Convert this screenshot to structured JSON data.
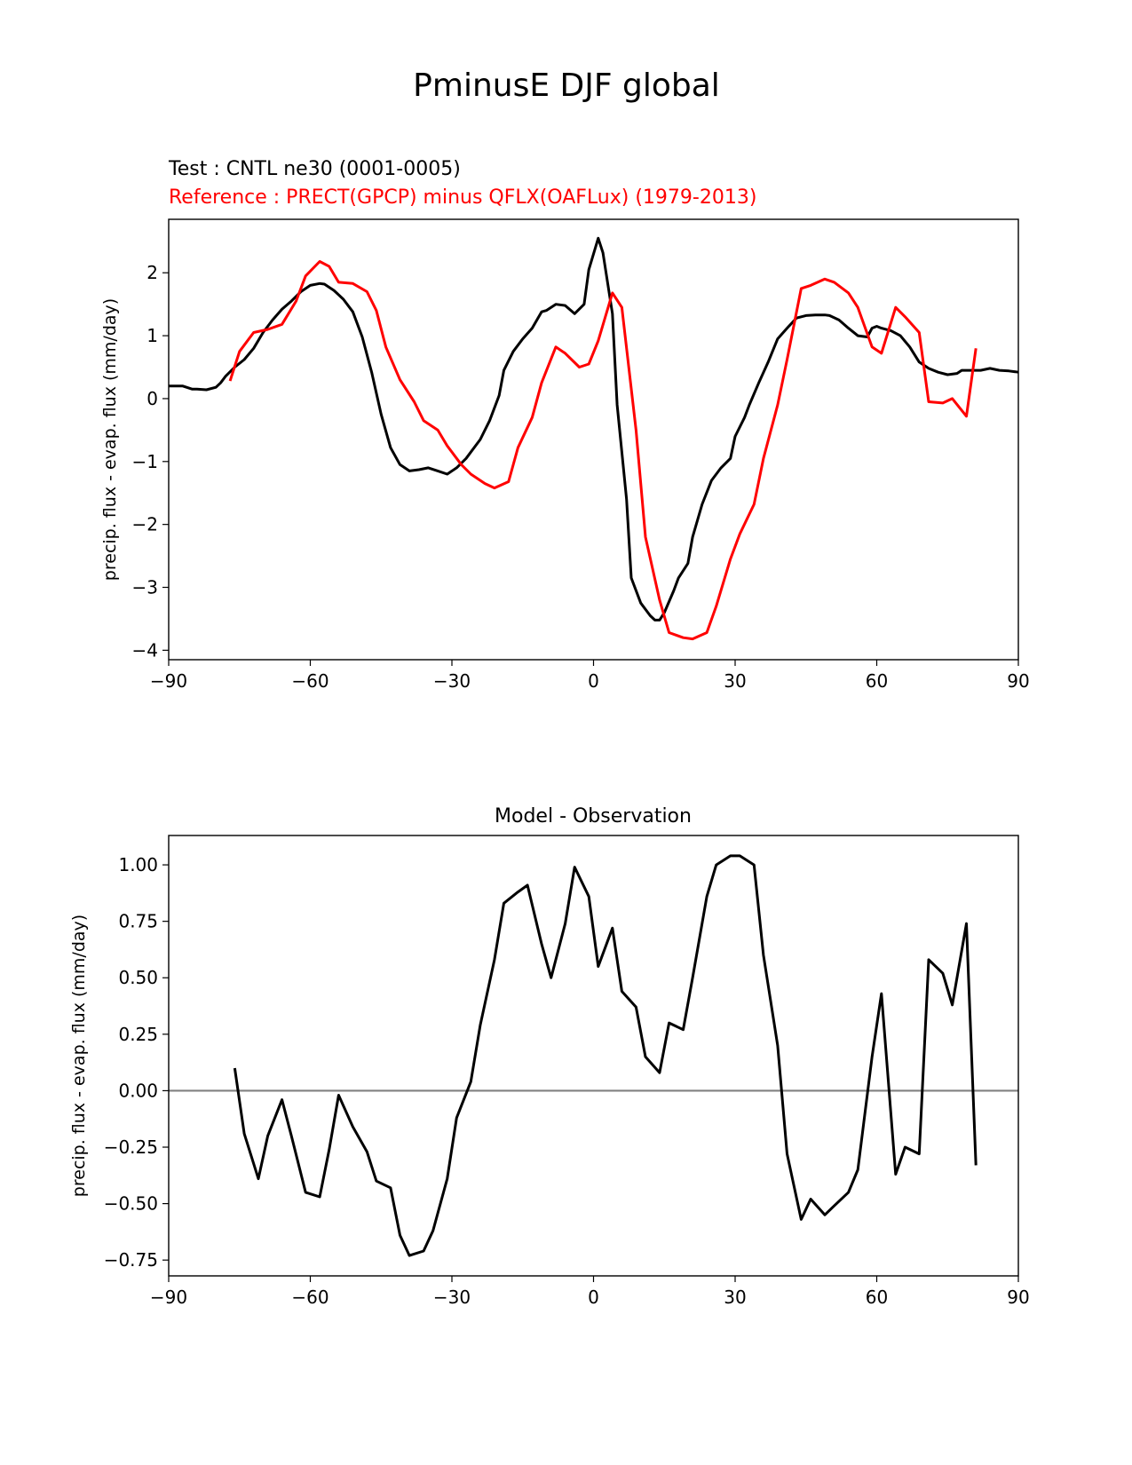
{
  "figure_title": "PminusE DJF global",
  "chart_data": [
    {
      "type": "line",
      "test_label": "Test : CNTL ne30 (0001-0005)",
      "ref_label": "Reference : PRECT(GPCP) minus QFLX(OAFLux) (1979-2013)",
      "xlabel": "",
      "ylabel": "precip. flux - evap. flux (mm/day)",
      "xlim": [
        -90,
        90
      ],
      "ylim": [
        -4.15,
        2.85
      ],
      "xticks": [
        -90,
        -60,
        -30,
        0,
        30,
        60,
        90
      ],
      "xtick_labels": [
        "−90",
        "−60",
        "−30",
        "0",
        "30",
        "60",
        "90"
      ],
      "yticks": [
        -4,
        -3,
        -2,
        -1,
        0,
        1,
        2
      ],
      "ytick_labels": [
        "−4",
        "−3",
        "−2",
        "−1",
        "0",
        "1",
        "2"
      ],
      "series": [
        {
          "name": "Test",
          "color": "#000000",
          "x": [
            -90,
            -87,
            -85,
            -84,
            -82,
            -80,
            -79,
            -78,
            -76,
            -74,
            -72,
            -70,
            -68,
            -66,
            -64,
            -62,
            -60,
            -58,
            -57,
            -55,
            -53,
            -51,
            -49,
            -47,
            -45,
            -43,
            -41,
            -39,
            -37,
            -35,
            -33,
            -31,
            -29,
            -27,
            -26,
            -24,
            -22,
            -20,
            -19,
            -17,
            -15,
            -13,
            -11,
            -10,
            -8,
            -6,
            -4,
            -2,
            -1,
            1,
            2,
            4,
            5,
            7,
            8,
            10,
            12,
            13,
            14,
            15,
            17,
            18,
            20,
            21,
            23,
            25,
            27,
            29,
            30,
            32,
            33,
            35,
            37,
            39,
            41,
            43,
            45,
            47,
            49,
            50,
            52,
            54,
            56,
            58,
            59,
            60,
            61,
            63,
            65,
            67,
            69,
            71,
            73,
            75,
            77,
            78,
            80,
            82,
            84,
            86,
            88,
            90
          ],
          "y": [
            0.2,
            0.2,
            0.15,
            0.15,
            0.14,
            0.18,
            0.25,
            0.35,
            0.5,
            0.62,
            0.8,
            1.05,
            1.25,
            1.42,
            1.55,
            1.7,
            1.8,
            1.83,
            1.82,
            1.72,
            1.58,
            1.38,
            0.98,
            0.42,
            -0.25,
            -0.78,
            -1.05,
            -1.15,
            -1.13,
            -1.1,
            -1.15,
            -1.2,
            -1.1,
            -0.95,
            -0.85,
            -0.65,
            -0.35,
            0.05,
            0.45,
            0.75,
            0.95,
            1.12,
            1.38,
            1.4,
            1.5,
            1.48,
            1.35,
            1.5,
            2.05,
            2.55,
            2.32,
            1.35,
            -0.1,
            -1.6,
            -2.85,
            -3.25,
            -3.45,
            -3.52,
            -3.52,
            -3.4,
            -3.05,
            -2.85,
            -2.62,
            -2.2,
            -1.68,
            -1.3,
            -1.1,
            -0.95,
            -0.6,
            -0.3,
            -0.1,
            0.25,
            0.58,
            0.95,
            1.12,
            1.28,
            1.32,
            1.33,
            1.33,
            1.32,
            1.25,
            1.12,
            1.0,
            0.98,
            1.12,
            1.15,
            1.12,
            1.08,
            1.0,
            0.82,
            0.58,
            0.48,
            0.42,
            0.38,
            0.4,
            0.45,
            0.45,
            0.45,
            0.48,
            0.45,
            0.44,
            0.42
          ]
        },
        {
          "name": "Reference",
          "color": "#ff0000",
          "x": [
            -77,
            -75,
            -72,
            -69,
            -66,
            -63,
            -61,
            -58,
            -56,
            -54,
            -51,
            -48,
            -46,
            -44,
            -41,
            -38,
            -36,
            -33,
            -31,
            -28,
            -26,
            -23,
            -21,
            -18,
            -16,
            -13,
            -11,
            -8,
            -6,
            -3,
            -1,
            1,
            4,
            6,
            9,
            11,
            14,
            16,
            19,
            21,
            24,
            26,
            29,
            31,
            34,
            36,
            39,
            41,
            44,
            46,
            49,
            51,
            54,
            56,
            59,
            61,
            64,
            66,
            69,
            71,
            74,
            76,
            79,
            81
          ],
          "y": [
            0.28,
            0.75,
            1.05,
            1.1,
            1.18,
            1.55,
            1.95,
            2.18,
            2.1,
            1.85,
            1.83,
            1.7,
            1.4,
            0.82,
            0.3,
            -0.05,
            -0.35,
            -0.5,
            -0.75,
            -1.05,
            -1.2,
            -1.35,
            -1.42,
            -1.32,
            -0.78,
            -0.3,
            0.25,
            0.82,
            0.72,
            0.5,
            0.55,
            0.92,
            1.68,
            1.45,
            -0.5,
            -2.2,
            -3.2,
            -3.72,
            -3.8,
            -3.82,
            -3.72,
            -3.3,
            -2.55,
            -2.15,
            -1.68,
            -0.95,
            -0.1,
            0.62,
            1.75,
            1.8,
            1.9,
            1.85,
            1.68,
            1.45,
            0.82,
            0.72,
            1.45,
            1.3,
            1.05,
            -0.05,
            -0.07,
            0.0,
            -0.28,
            0.8
          ]
        }
      ]
    },
    {
      "type": "line",
      "title": "Model - Observation",
      "xlabel": "",
      "ylabel": "precip. flux - evap. flux (mm/day)",
      "xlim": [
        -90,
        90
      ],
      "ylim": [
        -0.82,
        1.13
      ],
      "xticks": [
        -90,
        -60,
        -30,
        0,
        30,
        60,
        90
      ],
      "xtick_labels": [
        "−90",
        "−60",
        "−30",
        "0",
        "30",
        "60",
        "90"
      ],
      "yticks": [
        -0.75,
        -0.5,
        -0.25,
        0.0,
        0.25,
        0.5,
        0.75,
        1.0
      ],
      "ytick_labels": [
        "−0.75",
        "−0.50",
        "−0.25",
        "0.00",
        "0.25",
        "0.50",
        "0.75",
        "1.00"
      ],
      "zero_line_color": "#808080",
      "series": [
        {
          "name": "Model - Observation",
          "color": "#000000",
          "x": [
            -76,
            -74,
            -71,
            -69,
            -66,
            -64,
            -61,
            -58,
            -56,
            -54,
            -51,
            -48,
            -46,
            -43,
            -41,
            -39,
            -36,
            -34,
            -31,
            -29,
            -26,
            -24,
            -21,
            -19,
            -16,
            -14,
            -11,
            -9,
            -6,
            -4,
            -1,
            1,
            4,
            6,
            9,
            11,
            14,
            16,
            19,
            21,
            24,
            26,
            29,
            31,
            34,
            36,
            39,
            41,
            44,
            46,
            49,
            51,
            54,
            56,
            59,
            61,
            64,
            66,
            69,
            71,
            74,
            76,
            79,
            81
          ],
          "y": [
            0.1,
            -0.19,
            -0.39,
            -0.2,
            -0.04,
            -0.2,
            -0.45,
            -0.47,
            -0.26,
            -0.02,
            -0.16,
            -0.27,
            -0.4,
            -0.43,
            -0.64,
            -0.73,
            -0.71,
            -0.62,
            -0.39,
            -0.12,
            0.04,
            0.29,
            0.58,
            0.83,
            0.88,
            0.91,
            0.65,
            0.5,
            0.74,
            0.99,
            0.86,
            0.55,
            0.72,
            0.44,
            0.37,
            0.15,
            0.08,
            0.3,
            0.27,
            0.5,
            0.86,
            1.0,
            1.04,
            1.04,
            1.0,
            0.6,
            0.2,
            -0.28,
            -0.57,
            -0.48,
            -0.55,
            -0.51,
            -0.45,
            -0.35,
            0.15,
            0.43,
            -0.37,
            -0.25,
            -0.28,
            0.58,
            0.52,
            0.38,
            0.74,
            -0.33
          ]
        }
      ]
    }
  ]
}
